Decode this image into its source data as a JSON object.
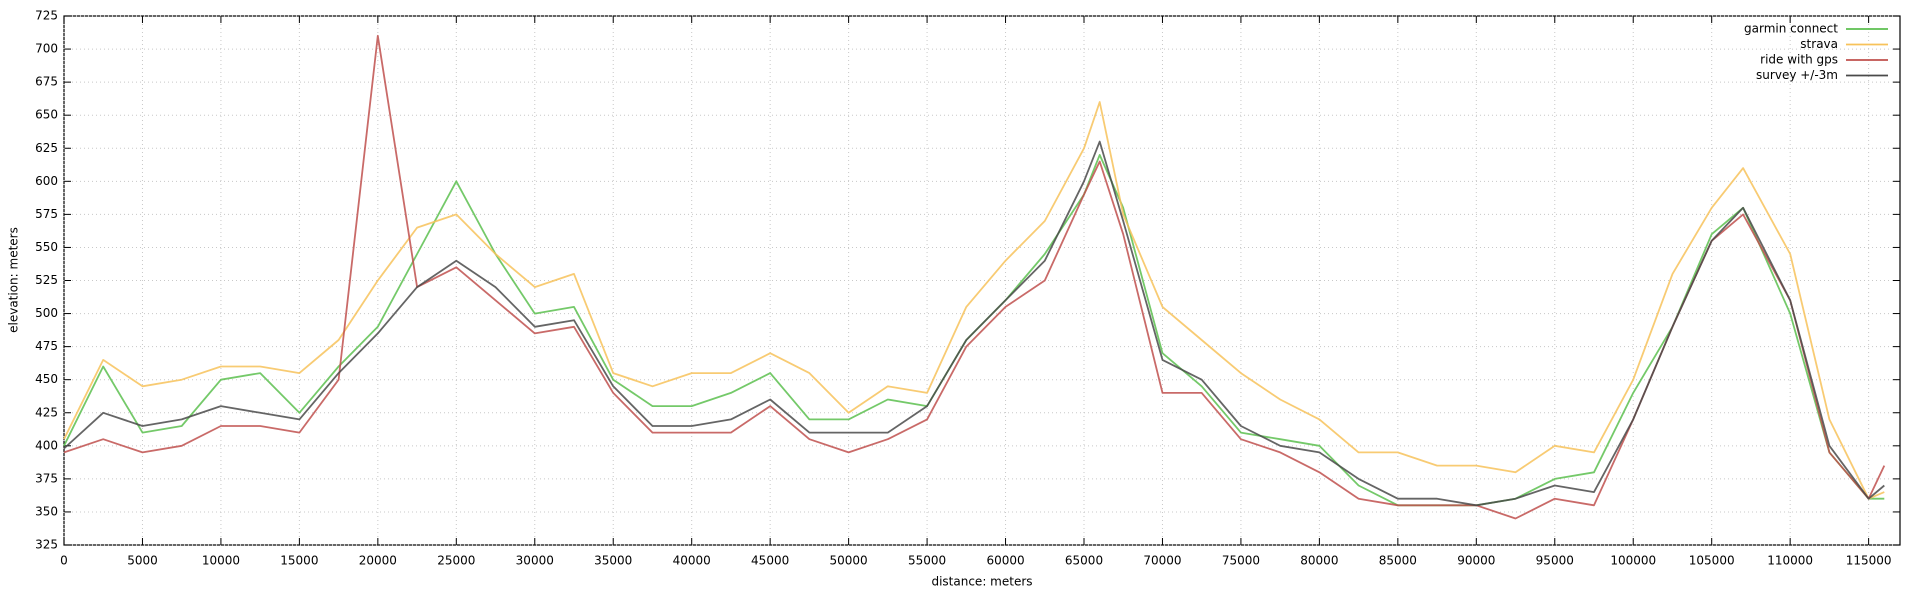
{
  "chart_data": {
    "type": "line",
    "xlabel": "distance: meters",
    "ylabel": "elevation: meters",
    "x": [
      0,
      2500,
      5000,
      7500,
      10000,
      12500,
      15000,
      17500,
      20000,
      22500,
      25000,
      27500,
      30000,
      32500,
      35000,
      37500,
      40000,
      42500,
      45000,
      47500,
      50000,
      52500,
      55000,
      57500,
      60000,
      62500,
      65000,
      66000,
      67500,
      70000,
      72500,
      75000,
      77500,
      80000,
      82500,
      85000,
      87500,
      90000,
      92500,
      95000,
      97500,
      100000,
      102500,
      105000,
      107000,
      110000,
      112500,
      115000,
      116000
    ],
    "series": [
      {
        "name": "garmin connect",
        "color": "#5cbf4f",
        "values": [
          400,
          460,
          410,
          415,
          450,
          455,
          425,
          460,
          490,
          545,
          600,
          545,
          500,
          505,
          450,
          430,
          430,
          440,
          455,
          420,
          420,
          435,
          430,
          480,
          510,
          545,
          590,
          620,
          580,
          470,
          445,
          410,
          405,
          400,
          370,
          355,
          355,
          355,
          360,
          375,
          380,
          440,
          490,
          560,
          580,
          500,
          395,
          360,
          360
        ]
      },
      {
        "name": "strava",
        "color": "#f7c25a",
        "values": [
          405,
          465,
          445,
          450,
          460,
          460,
          455,
          480,
          525,
          565,
          575,
          545,
          520,
          530,
          455,
          445,
          455,
          455,
          470,
          455,
          425,
          445,
          440,
          505,
          540,
          570,
          625,
          660,
          575,
          505,
          480,
          455,
          435,
          420,
          395,
          395,
          385,
          385,
          380,
          400,
          395,
          450,
          530,
          580,
          610,
          545,
          420,
          360,
          365
        ]
      },
      {
        "name": "ride with gps",
        "color": "#c0504d",
        "values": [
          395,
          405,
          395,
          400,
          415,
          415,
          410,
          450,
          710,
          520,
          535,
          510,
          485,
          490,
          440,
          410,
          410,
          410,
          430,
          405,
          395,
          405,
          420,
          475,
          505,
          525,
          590,
          615,
          560,
          440,
          440,
          405,
          395,
          380,
          360,
          355,
          355,
          355,
          345,
          360,
          355,
          420,
          490,
          555,
          575,
          510,
          395,
          360,
          385
        ]
      },
      {
        "name": "survey +/-3m",
        "color": "#4a4a4a",
        "values": [
          398,
          425,
          415,
          420,
          430,
          425,
          420,
          455,
          485,
          520,
          540,
          520,
          490,
          495,
          445,
          415,
          415,
          420,
          435,
          410,
          410,
          410,
          430,
          480,
          510,
          540,
          600,
          630,
          570,
          465,
          450,
          415,
          400,
          395,
          375,
          360,
          360,
          355,
          360,
          370,
          365,
          420,
          490,
          555,
          580,
          510,
          400,
          360,
          370
        ]
      }
    ],
    "xlim": [
      0,
      117000
    ],
    "ylim": [
      325,
      725
    ],
    "xticks": [
      0,
      5000,
      10000,
      15000,
      20000,
      25000,
      30000,
      35000,
      40000,
      45000,
      50000,
      55000,
      60000,
      65000,
      70000,
      75000,
      80000,
      85000,
      90000,
      95000,
      100000,
      105000,
      110000,
      115000
    ],
    "yticks": [
      325,
      350,
      375,
      400,
      425,
      450,
      475,
      500,
      525,
      550,
      575,
      600,
      625,
      650,
      675,
      700,
      725
    ],
    "grid": true,
    "legend": "top-right"
  }
}
